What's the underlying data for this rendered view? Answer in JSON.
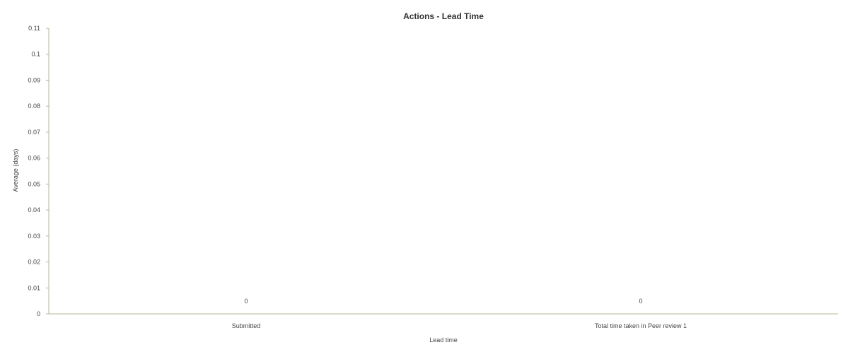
{
  "chart_data": {
    "type": "bar",
    "title": "Actions - Lead Time",
    "xlabel": "Lead time",
    "ylabel": "Average (days)",
    "categories": [
      "Submitted",
      "Total time taken in Peer review 1"
    ],
    "values": [
      0,
      0
    ],
    "data_labels": [
      "0",
      "0"
    ],
    "ylim": [
      0,
      0.11
    ],
    "yticks": [
      "0",
      "0.01",
      "0.02",
      "0.03",
      "0.04",
      "0.05",
      "0.06",
      "0.07",
      "0.08",
      "0.09",
      "0.1",
      "0.11"
    ],
    "grid": false,
    "legend": "none"
  },
  "colors": {
    "axis": "#b8b49a",
    "text": "#444444",
    "title": "#333333"
  }
}
